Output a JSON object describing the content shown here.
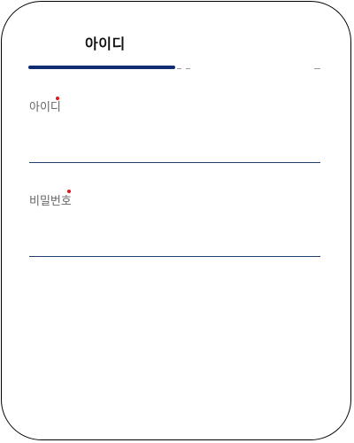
{
  "tab": {
    "active_label": "아이디"
  },
  "form": {
    "id_field": {
      "label": "아이디",
      "value": "",
      "placeholder": ""
    },
    "password_field": {
      "label": "비밀번호",
      "value": "",
      "placeholder": ""
    }
  },
  "colors": {
    "indicator": "#0f2d73",
    "input_underline": "#1f3f6e",
    "required_marker": "#e3141e"
  }
}
